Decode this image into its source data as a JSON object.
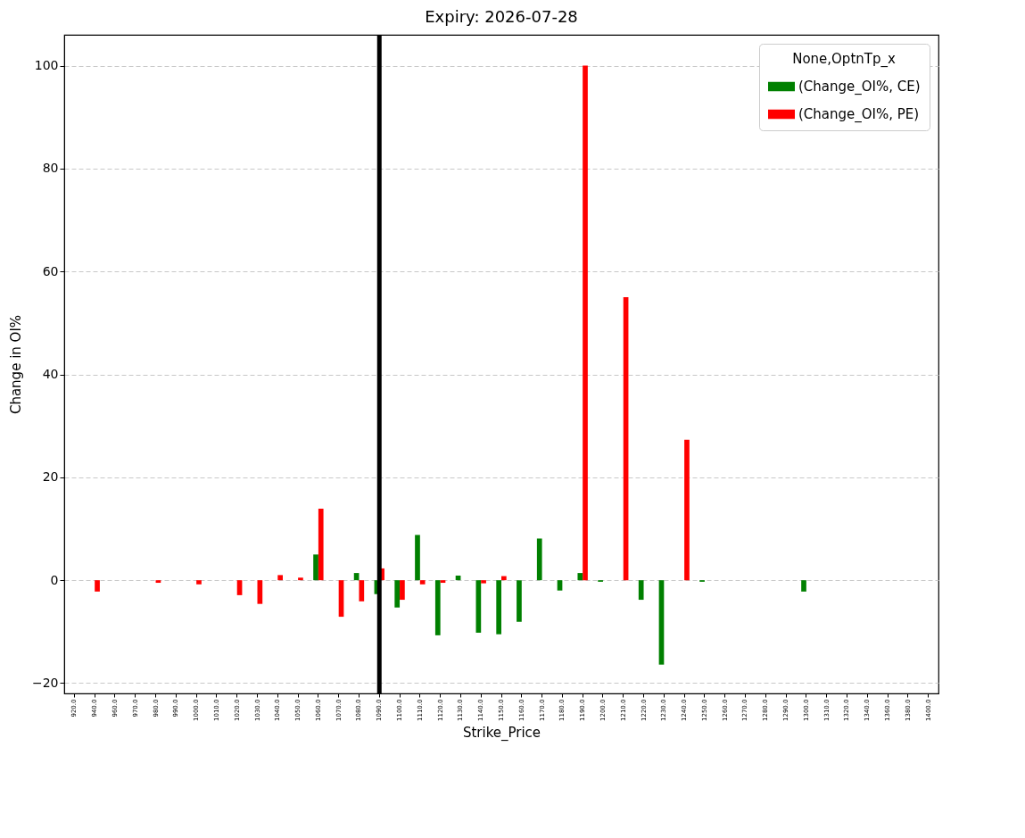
{
  "chart_data": {
    "type": "bar",
    "title": "Expiry: 2026-07-28",
    "xlabel": "Strike_Price",
    "ylabel": "Change in OI%",
    "legend_title": "None,OptnTp_x",
    "categories": [
      "920.0",
      "940.0",
      "960.0",
      "970.0",
      "980.0",
      "990.0",
      "1000.0",
      "1010.0",
      "1020.0",
      "1030.0",
      "1040.0",
      "1050.0",
      "1060.0",
      "1070.0",
      "1080.0",
      "1090.0",
      "1100.0",
      "1110.0",
      "1120.0",
      "1130.0",
      "1140.0",
      "1150.0",
      "1160.0",
      "1170.0",
      "1180.0",
      "1190.0",
      "1200.0",
      "1210.0",
      "1220.0",
      "1230.0",
      "1240.0",
      "1250.0",
      "1260.0",
      "1270.0",
      "1280.0",
      "1290.0",
      "1300.0",
      "1310.0",
      "1320.0",
      "1340.0",
      "1360.0",
      "1380.0",
      "1400.0"
    ],
    "series": [
      {
        "name": "(Change_OI%, CE)",
        "color": "#008000",
        "values": [
          null,
          null,
          null,
          null,
          null,
          null,
          null,
          null,
          null,
          null,
          null,
          null,
          5.0,
          null,
          1.4,
          -2.7,
          -5.3,
          8.8,
          -10.7,
          0.9,
          -10.2,
          -10.5,
          -8.1,
          8.1,
          -2.0,
          1.4,
          -0.3,
          null,
          -3.8,
          -16.4,
          null,
          -0.3,
          null,
          null,
          null,
          null,
          -2.2,
          null,
          null,
          null,
          null,
          null,
          null
        ]
      },
      {
        "name": "(Change_OI%, PE)",
        "color": "#ff0000",
        "values": [
          null,
          -2.2,
          null,
          null,
          -0.5,
          null,
          -0.8,
          null,
          -2.9,
          -4.6,
          1.0,
          0.5,
          13.9,
          -7.1,
          -4.1,
          2.3,
          -3.8,
          -0.8,
          -0.5,
          null,
          -0.6,
          0.8,
          null,
          null,
          null,
          100,
          null,
          55,
          null,
          null,
          27.3,
          null,
          null,
          null,
          null,
          null,
          null,
          null,
          null,
          null,
          null,
          null,
          null
        ]
      }
    ],
    "ylim": [
      -22,
      106
    ],
    "yticks": [
      {
        "value": -20,
        "label": "−20"
      },
      0,
      20,
      40,
      60,
      80,
      100
    ],
    "ref_lines": [
      {
        "axis": "x",
        "value": "1090.0",
        "color": "#000000"
      }
    ],
    "grid": "y",
    "legend": "top right"
  }
}
